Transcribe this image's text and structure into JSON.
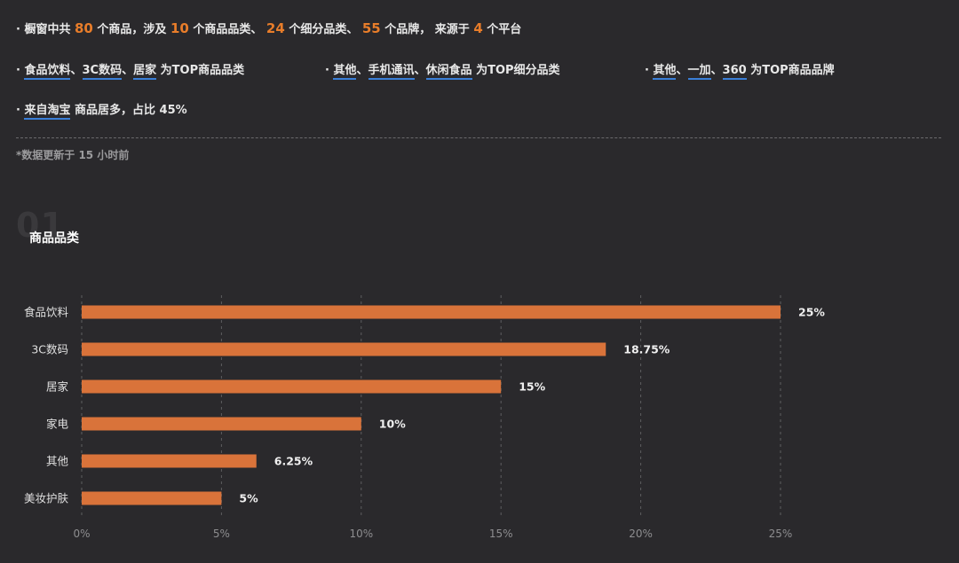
{
  "summary": {
    "line1": {
      "prefix": "· 橱窗中共",
      "products": "80",
      "t1": "个商品，涉及",
      "categories": "10",
      "t2": "个商品品类、",
      "subcategories": "24",
      "t3": "个细分品类、",
      "brands": "55",
      "t4": "个品牌，  来源于",
      "platforms": "4",
      "t5": "个平台"
    },
    "line2": {
      "col1": {
        "bullet": "· ",
        "items": [
          "食品饮料",
          "3C数码",
          "居家"
        ],
        "suffix": " 为TOP商品品类"
      },
      "col2": {
        "bullet": "· ",
        "items": [
          "其他",
          "手机通讯",
          "休闲食品"
        ],
        "suffix": " 为TOP细分品类"
      },
      "col3": {
        "bullet": "· ",
        "items": [
          "其他",
          "一加",
          "360"
        ],
        "suffix": " 为TOP商品品牌"
      },
      "sep": "、"
    },
    "line3": {
      "bullet": "· ",
      "platform": "来自淘宝",
      "suffix": " 商品居多，占比 45%"
    }
  },
  "update_note": "*数据更新于 15 小时前",
  "section": {
    "number": "01",
    "title": "商品品类"
  },
  "chart_data": {
    "type": "bar",
    "orientation": "horizontal",
    "categories": [
      "食品饮料",
      "3C数码",
      "居家",
      "家电",
      "其他",
      "美妆护肤"
    ],
    "values": [
      25,
      18.75,
      15,
      10,
      6.25,
      5
    ],
    "value_labels": [
      "25%",
      "18.75%",
      "15%",
      "10%",
      "6.25%",
      "5%"
    ],
    "xlim": [
      0,
      25
    ],
    "xticks": [
      "0%",
      "5%",
      "10%",
      "15%",
      "20%",
      "25%"
    ],
    "grid": "vertical-dashed",
    "bar_color": "#d9733a"
  },
  "colors": {
    "accent": "#e87d2a",
    "underline": "#3a7fd8",
    "background": "#2a292c"
  }
}
